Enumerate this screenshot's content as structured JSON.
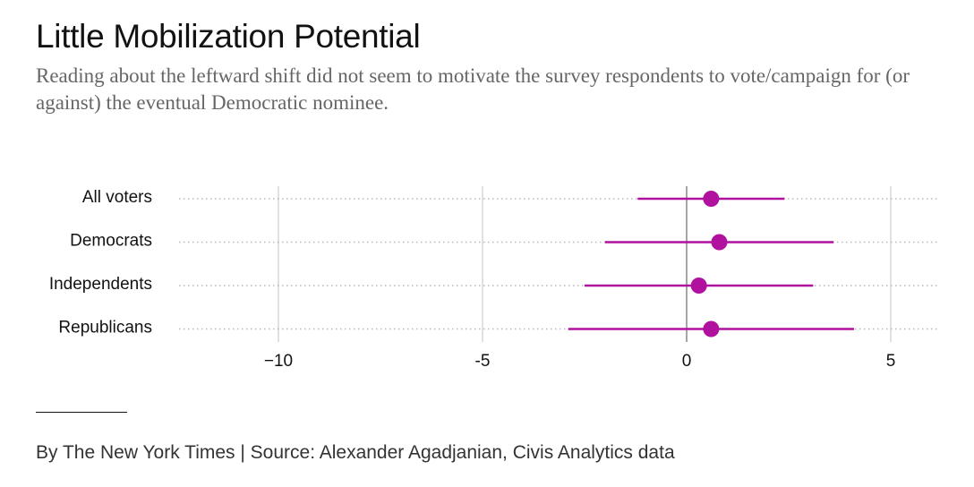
{
  "title": "Little Mobilization Potential",
  "subtitle": "Reading about the leftward shift did not seem to motivate the survey respondents to vote/campaign for (or against) the eventual Democratic nominee.",
  "credit": "By The New York Times | Source: Alexander Agadjanian, Civis Analytics data",
  "colors": {
    "point": "#b0119e",
    "grid": "#e2e2dc",
    "zero": "#888888",
    "dots": "#b8b8b8"
  },
  "chart_data": {
    "type": "scatter",
    "orientation": "horizontal",
    "xlim": [
      -12.5,
      6.2
    ],
    "ticks": [
      {
        "value": -10,
        "label": "−10"
      },
      {
        "value": -5,
        "label": "-5"
      },
      {
        "value": 0,
        "label": "0"
      },
      {
        "value": 5,
        "label": "5"
      }
    ],
    "grid": true,
    "categories": [
      "All voters",
      "Democrats",
      "Independents",
      "Republicans"
    ],
    "estimates": [
      0.6,
      0.8,
      0.3,
      0.6
    ],
    "ci_low": [
      -1.2,
      -2.0,
      -2.5,
      -2.9
    ],
    "ci_high": [
      2.4,
      3.6,
      3.1,
      4.1
    ]
  }
}
